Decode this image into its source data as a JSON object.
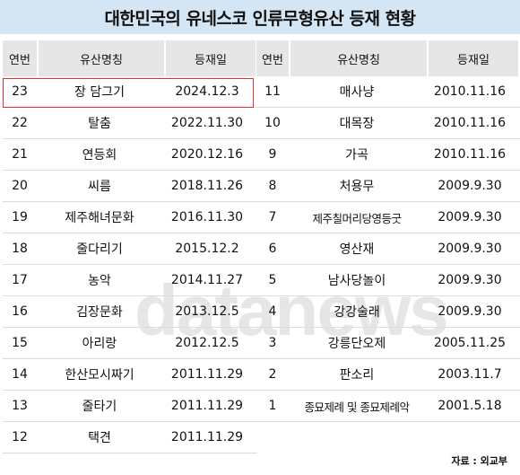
{
  "title": "대한민국의 유네스코 인류무형유산 등재 현황",
  "headers": {
    "no": "연번",
    "name": "유산명칭",
    "date": "등재일"
  },
  "left_rows": [
    {
      "no": "23",
      "name": "장 담그기",
      "date": "2024.12.3"
    },
    {
      "no": "22",
      "name": "탈춤",
      "date": "2022.11.30"
    },
    {
      "no": "21",
      "name": "연등회",
      "date": "2020.12.16"
    },
    {
      "no": "20",
      "name": "씨름",
      "date": "2018.11.26"
    },
    {
      "no": "19",
      "name": "제주해녀문화",
      "date": "2016.11.30"
    },
    {
      "no": "18",
      "name": "줄다리기",
      "date": "2015.12.2"
    },
    {
      "no": "17",
      "name": "농악",
      "date": "2014.11.27"
    },
    {
      "no": "16",
      "name": "김장문화",
      "date": "2013.12.5"
    },
    {
      "no": "15",
      "name": "아리랑",
      "date": "2012.12.5"
    },
    {
      "no": "14",
      "name": "한산모시짜기",
      "date": "2011.11.29"
    },
    {
      "no": "13",
      "name": "줄타기",
      "date": "2011.11.29"
    },
    {
      "no": "12",
      "name": "택견",
      "date": "2011.11.29"
    }
  ],
  "right_rows": [
    {
      "no": "11",
      "name": "매사냥",
      "date": "2010.11.16"
    },
    {
      "no": "10",
      "name": "대목장",
      "date": "2010.11.16"
    },
    {
      "no": "9",
      "name": "가곡",
      "date": "2010.11.16"
    },
    {
      "no": "8",
      "name": "처용무",
      "date": "2009.9.30"
    },
    {
      "no": "7",
      "name": "제주칠머리당영등굿",
      "date": "2009.9.30"
    },
    {
      "no": "6",
      "name": "영산재",
      "date": "2009.9.30"
    },
    {
      "no": "5",
      "name": "남사당놀이",
      "date": "2009.9.30"
    },
    {
      "no": "4",
      "name": "강강술래",
      "date": "2009.9.30"
    },
    {
      "no": "3",
      "name": "강릉단오제",
      "date": "2005.11.25"
    },
    {
      "no": "2",
      "name": "판소리",
      "date": "2003.11.7"
    },
    {
      "no": "1",
      "name": "종묘제례 및 종묘제례악",
      "date": "2001.5.18"
    }
  ],
  "watermark": "datanews",
  "source": "자료 : 외교부",
  "colors": {
    "title_bg": "#d4e6f4",
    "header_bg": "#e6e6e6",
    "highlight": "#e4322b"
  }
}
